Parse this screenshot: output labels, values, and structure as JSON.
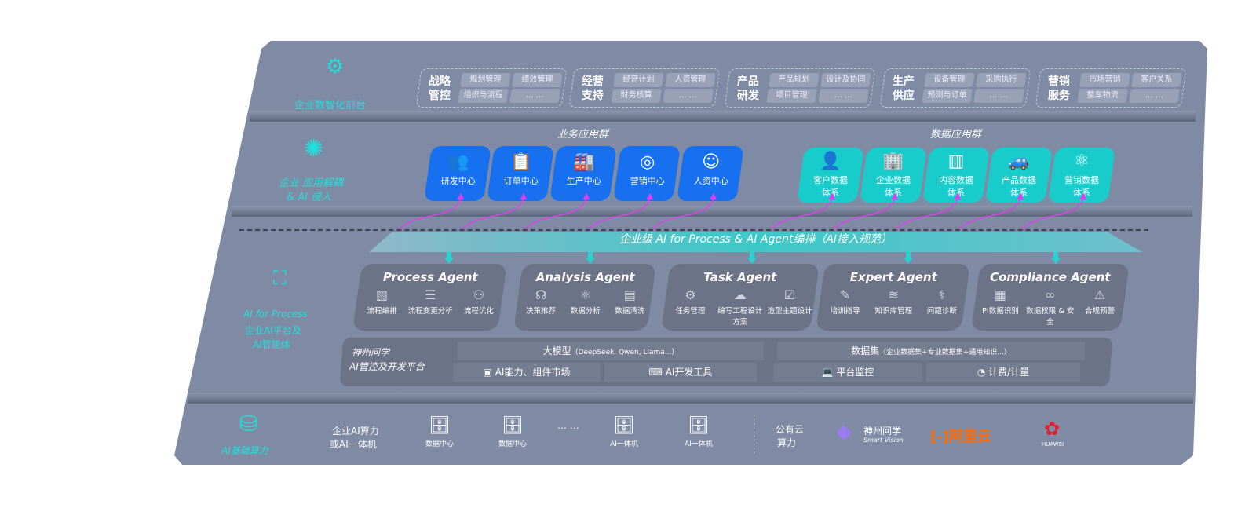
{
  "layers": {
    "front": {
      "label": "企业数智化前台",
      "icon": "brain-icon"
    },
    "apps": {
      "label_line1": "企业 应用解耦",
      "label_line2": "& AI 侵入",
      "icon": "molecule-icon"
    },
    "ai": {
      "label_line1": "AI for Process",
      "label_line2": "企业AI平台及",
      "label_line3": "AI智能体",
      "icon": "face-scan-icon"
    },
    "infra": {
      "label": "AI基础算力",
      "icon": "database-icon"
    }
  },
  "front_groups": [
    {
      "title1": "战略",
      "title2": "管控",
      "chips": [
        "规划管理",
        "绩效管理",
        "组织与流程",
        "… …"
      ]
    },
    {
      "title1": "经营",
      "title2": "支持",
      "chips": [
        "经营计划",
        "人资管理",
        "财务核算",
        "… …"
      ]
    },
    {
      "title1": "产品",
      "title2": "研发",
      "chips": [
        "产品规划",
        "设计及协同",
        "项目管理",
        "… …"
      ]
    },
    {
      "title1": "生产",
      "title2": "供应",
      "chips": [
        "设备管理",
        "采购执行",
        "预测与订单",
        "… …"
      ]
    },
    {
      "title1": "营销",
      "title2": "服务",
      "chips": [
        "市场营销",
        "客户关系",
        "整车物流",
        "… …"
      ]
    }
  ],
  "business_apps": {
    "title": "业务应用群",
    "color": "#1670f0",
    "items": [
      {
        "label": "研发中心",
        "icon": "team-icon"
      },
      {
        "label": "订单中心",
        "icon": "clipboard-icon"
      },
      {
        "label": "生产中心",
        "icon": "factory-icon"
      },
      {
        "label": "营销中心",
        "icon": "target-icon"
      },
      {
        "label": "人资中心",
        "icon": "person-icon"
      }
    ]
  },
  "data_apps": {
    "title": "数据应用群",
    "color": "#19cccc",
    "items": [
      {
        "l1": "客户数据",
        "l2": "体系",
        "icon": "user-icon"
      },
      {
        "l1": "企业数据",
        "l2": "体系",
        "icon": "building-icon"
      },
      {
        "l1": "内容数据",
        "l2": "体系",
        "icon": "books-icon"
      },
      {
        "l1": "产品数据",
        "l2": "体系",
        "icon": "car-icon"
      },
      {
        "l1": "营销数据",
        "l2": "体系",
        "icon": "atom-icon"
      }
    ]
  },
  "banner": "企业级 AI for Process & AI Agent编排（AI接入规范）",
  "agents": [
    {
      "name": "Process Agent",
      "items": [
        {
          "label": "流程编排",
          "icon": "chart-board-icon"
        },
        {
          "label": "流程变更分析",
          "icon": "list-icon"
        },
        {
          "label": "流程优化",
          "icon": "network-icon"
        }
      ]
    },
    {
      "name": "Analysis Agent",
      "items": [
        {
          "label": "决策推荐",
          "icon": "head-icon"
        },
        {
          "label": "数据分析",
          "icon": "atom-icon"
        },
        {
          "label": "数据清洗",
          "icon": "doc-clean-icon"
        }
      ]
    },
    {
      "name": "Task Agent",
      "items": [
        {
          "label": "任务管理",
          "icon": "robot-icon"
        },
        {
          "label": "编写工程设计方案",
          "icon": "cloud-icon"
        },
        {
          "label": "造型主题设计",
          "icon": "checklist-icon"
        }
      ]
    },
    {
      "name": "Expert Agent",
      "items": [
        {
          "label": "培训指导",
          "icon": "pen-icon"
        },
        {
          "label": "知识库管理",
          "icon": "layers-icon"
        },
        {
          "label": "问题诊断",
          "icon": "diagnose-icon"
        }
      ]
    },
    {
      "name": "Compliance Agent",
      "items": [
        {
          "label": "PI数据识别",
          "icon": "id-card-icon"
        },
        {
          "label": "数据权限 & 安全",
          "icon": "link-icon"
        },
        {
          "label": "合规预警",
          "icon": "alert-icon"
        }
      ]
    }
  ],
  "platform": {
    "name1": "神州问学",
    "name2": "AI管控及开发平台",
    "model": "大模型",
    "model_note": "（DeepSeek, Qwen, Llama...）",
    "dataset": "数据集",
    "dataset_note": "（企业数据集+专业数据集+通用知识...）",
    "market": "AI能力、组件市场",
    "devtools": "AI开发工具",
    "monitor": "平台监控",
    "billing": "计费/计量"
  },
  "infra": {
    "private_l1": "企业AI算力",
    "private_l2": "或AI一体机",
    "servers": [
      "数据中心",
      "数据中心",
      "AI一体机",
      "AI一体机"
    ],
    "ellipsis": "… …",
    "public_l1": "公有云",
    "public_l2": "算力",
    "vendors": [
      {
        "name": "神州问学",
        "sub": "Smart Vision"
      },
      {
        "name": "阿里云",
        "color": "#ff6a00"
      },
      {
        "name": "HUAWEI",
        "color": "#e0202a"
      }
    ]
  }
}
